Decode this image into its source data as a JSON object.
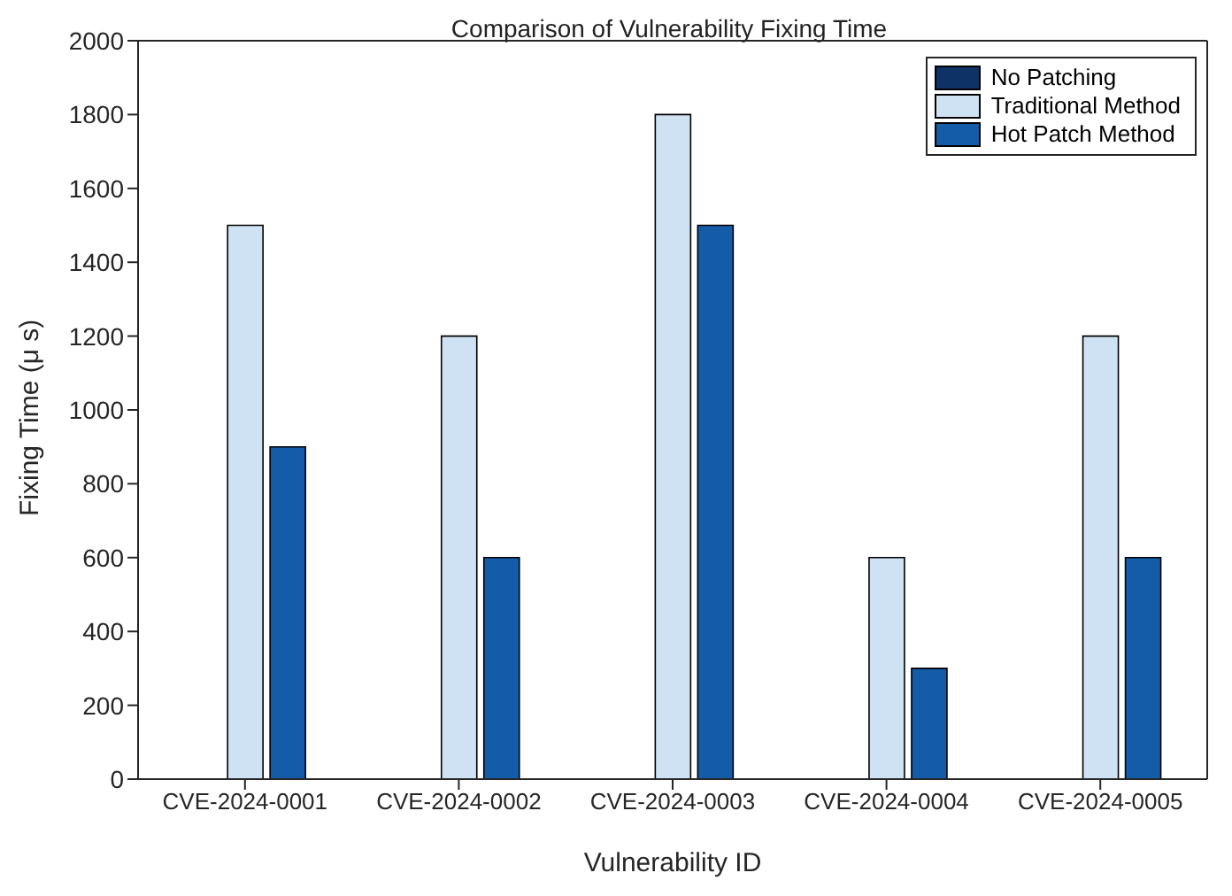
{
  "chart_data": {
    "type": "bar",
    "title": "Comparison of Vulnerability Fixing Time",
    "xlabel": "Vulnerability ID",
    "ylabel": "Fixing Time (μ s)",
    "categories": [
      "CVE-2024-0001",
      "CVE-2024-0002",
      "CVE-2024-0003",
      "CVE-2024-0004",
      "CVE-2024-0005"
    ],
    "series": [
      {
        "name": "No Patching",
        "color": "#0e3166",
        "values": [
          0,
          0,
          0,
          0,
          0
        ]
      },
      {
        "name": "Traditional Method",
        "color": "#cfe2f3",
        "values": [
          1500,
          1200,
          1800,
          600,
          1200
        ]
      },
      {
        "name": "Hot Patch Method",
        "color": "#145ca8",
        "values": [
          900,
          600,
          1500,
          300,
          600
        ]
      }
    ],
    "ylim": [
      0,
      2000
    ],
    "yticks": [
      0,
      200,
      400,
      600,
      800,
      1000,
      1200,
      1400,
      1600,
      1800,
      2000
    ],
    "grid": false,
    "legend": "top right"
  }
}
